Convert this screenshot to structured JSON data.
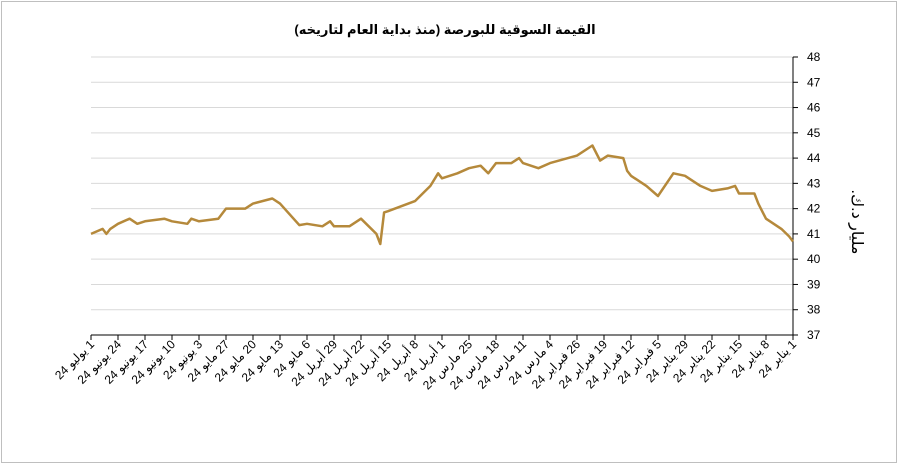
{
  "chart_data": {
    "type": "line",
    "title": "القيمة السوقية للبورصة (منذ بداية العام لتاريخه)",
    "y_label": "مليار د.ك.",
    "series": [
      {
        "name": "القيمة السوقية",
        "color": "#b5893b",
        "x": [
          "2024-01-01",
          "2024-01-02",
          "2024-01-04",
          "2024-01-08",
          "2024-01-10",
          "2024-01-11",
          "2024-01-15",
          "2024-01-16",
          "2024-01-18",
          "2024-01-22",
          "2024-01-25",
          "2024-01-29",
          "2024-02-01",
          "2024-02-05",
          "2024-02-08",
          "2024-02-12",
          "2024-02-13",
          "2024-02-14",
          "2024-02-18",
          "2024-02-20",
          "2024-02-22",
          "2024-02-26",
          "2024-03-04",
          "2024-03-07",
          "2024-03-11",
          "2024-03-12",
          "2024-03-14",
          "2024-03-18",
          "2024-03-20",
          "2024-03-22",
          "2024-03-25",
          "2024-03-28",
          "2024-04-01",
          "2024-04-02",
          "2024-04-04",
          "2024-04-08",
          "2024-04-15",
          "2024-04-16",
          "2024-04-17",
          "2024-04-18",
          "2024-04-22",
          "2024-04-25",
          "2024-04-29",
          "2024-04-30",
          "2024-05-02",
          "2024-05-06",
          "2024-05-08",
          "2024-05-13",
          "2024-05-15",
          "2024-05-20",
          "2024-05-22",
          "2024-05-27",
          "2024-05-29",
          "2024-06-03",
          "2024-06-05",
          "2024-06-06",
          "2024-06-10",
          "2024-06-12",
          "2024-06-17",
          "2024-06-19",
          "2024-06-21",
          "2024-06-24",
          "2024-06-26",
          "2024-06-27",
          "2024-06-28",
          "2024-07-01"
        ],
        "values": [
          40.7,
          40.9,
          41.2,
          41.6,
          42.2,
          42.6,
          42.6,
          42.9,
          42.8,
          42.7,
          42.9,
          43.3,
          43.4,
          42.5,
          42.9,
          43.3,
          43.5,
          44.0,
          44.1,
          43.9,
          44.5,
          44.1,
          43.8,
          43.6,
          43.8,
          44.0,
          43.8,
          43.8,
          43.4,
          43.7,
          43.6,
          43.4,
          43.2,
          43.4,
          42.9,
          42.3,
          41.9,
          41.85,
          40.6,
          41.0,
          41.6,
          41.3,
          41.3,
          41.5,
          41.3,
          41.4,
          41.35,
          42.2,
          42.4,
          42.2,
          42.0,
          42.0,
          41.6,
          41.5,
          41.6,
          41.4,
          41.5,
          41.6,
          41.5,
          41.4,
          41.6,
          41.4,
          41.2,
          41.0,
          41.2,
          41.0
        ]
      }
    ],
    "xlim": [
      "2024-07-01",
      "2024-01-01"
    ],
    "xticks": [
      {
        "value": "2024-01-01",
        "label": "1 يناير 24"
      },
      {
        "value": "2024-01-08",
        "label": "8 يناير 24"
      },
      {
        "value": "2024-01-15",
        "label": "15 يناير 24"
      },
      {
        "value": "2024-01-22",
        "label": "22 يناير 24"
      },
      {
        "value": "2024-01-29",
        "label": "29 يناير 24"
      },
      {
        "value": "2024-02-05",
        "label": "5 فبراير 24"
      },
      {
        "value": "2024-02-12",
        "label": "12 فبراير 24"
      },
      {
        "value": "2024-02-19",
        "label": "19 فبراير 24"
      },
      {
        "value": "2024-02-26",
        "label": "26 فبراير 24"
      },
      {
        "value": "2024-03-04",
        "label": "4 مارس 24"
      },
      {
        "value": "2024-03-11",
        "label": "11 مارس 24"
      },
      {
        "value": "2024-03-18",
        "label": "18 مارس 24"
      },
      {
        "value": "2024-03-25",
        "label": "25 مارس 24"
      },
      {
        "value": "2024-04-01",
        "label": "1 أبريل 24"
      },
      {
        "value": "2024-04-08",
        "label": "8 أبريل 24"
      },
      {
        "value": "2024-04-15",
        "label": "15 أبريل 24"
      },
      {
        "value": "2024-04-22",
        "label": "22 أبريل 24"
      },
      {
        "value": "2024-04-29",
        "label": "29 أبريل 24"
      },
      {
        "value": "2024-05-06",
        "label": "6 مايو 24"
      },
      {
        "value": "2024-05-13",
        "label": "13 مايو 24"
      },
      {
        "value": "2024-05-20",
        "label": "20 مايو 24"
      },
      {
        "value": "2024-05-27",
        "label": "27 مايو 24"
      },
      {
        "value": "2024-06-03",
        "label": "3 يونيو 24"
      },
      {
        "value": "2024-06-10",
        "label": "10 يونيو 24"
      },
      {
        "value": "2024-06-17",
        "label": "17 يونيو 24"
      },
      {
        "value": "2024-06-24",
        "label": "24 يونيو 24"
      },
      {
        "value": "2024-07-01",
        "label": "1 يوليو 24"
      }
    ],
    "ylim": [
      37,
      48
    ],
    "yticks": [
      37,
      38,
      39,
      40,
      41,
      42,
      43,
      44,
      45,
      46,
      47,
      48
    ],
    "grid": true
  }
}
